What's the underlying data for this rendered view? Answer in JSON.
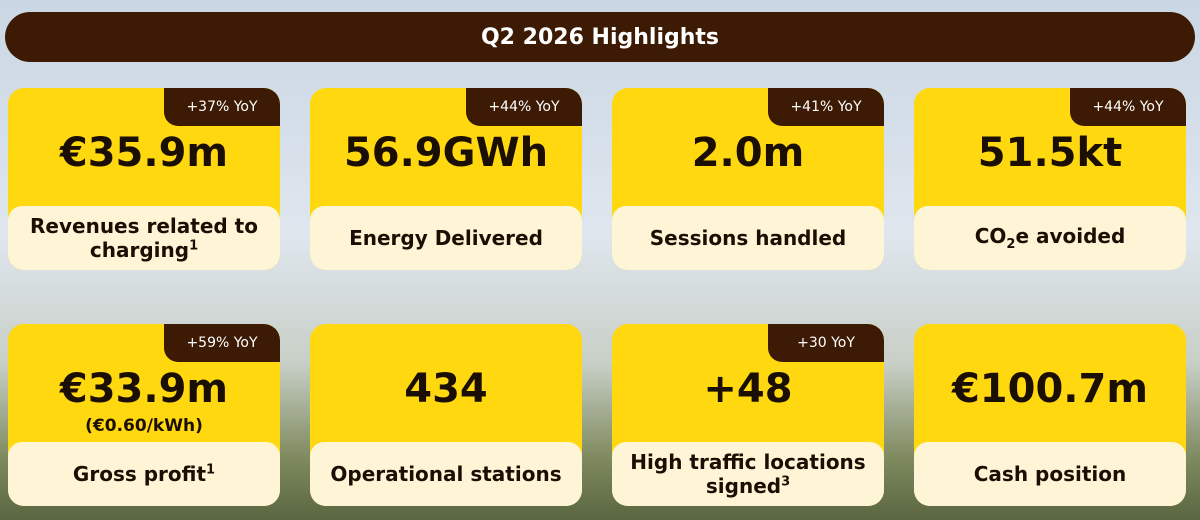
{
  "header": {
    "title": "Q2 2026 Highlights"
  },
  "cards": [
    {
      "value": "€35.9m",
      "badge": "+37% YoY",
      "label": [
        {
          "text": "Revenues related to charging"
        },
        {
          "text": "1",
          "sup": true
        }
      ]
    },
    {
      "value": "56.9GWh",
      "badge": "+44% YoY",
      "label": [
        {
          "text": "Energy Delivered"
        }
      ]
    },
    {
      "value": "2.0m",
      "badge": "+41% YoY",
      "label": [
        {
          "text": "Sessions handled"
        }
      ]
    },
    {
      "value": "51.5kt",
      "badge": "+44% YoY",
      "label": [
        {
          "text": "CO"
        },
        {
          "text": "2",
          "sub": true
        },
        {
          "text": "e avoided"
        }
      ]
    },
    {
      "value": "€33.9m",
      "sub": "(€0.60/kWh)",
      "badge": "+59% YoY",
      "label": [
        {
          "text": "Gross profit"
        },
        {
          "text": "1",
          "sup": true
        }
      ]
    },
    {
      "value": "434",
      "label": [
        {
          "text": "Operational stations"
        }
      ]
    },
    {
      "value": "+48",
      "badge": "+30 YoY",
      "label": [
        {
          "text": "High traffic locations signed"
        },
        {
          "text": "3",
          "sup": true
        }
      ]
    },
    {
      "value": "€100.7m",
      "label": [
        {
          "text": "Cash position"
        }
      ]
    }
  ]
}
